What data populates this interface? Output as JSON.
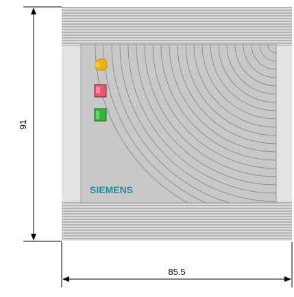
{
  "diagram": {
    "brand": "SIEMENS",
    "height_label": "91",
    "width_label": "85.5",
    "indicators": [
      {
        "name": "yellow-led",
        "color": "#f2b10a"
      },
      {
        "name": "red-led",
        "color": "#e45a73"
      },
      {
        "name": "green-led",
        "color": "#35b23b"
      }
    ],
    "colors": {
      "rib_light": "#d6d6d6",
      "rib_dark": "#a8a8a8",
      "side_frame": "#e3e3e3",
      "panel": "#c8c8c8",
      "arc_line": "#7f7f7f",
      "brand_text": "#1f8a97",
      "dimension_line": "#000000"
    }
  }
}
